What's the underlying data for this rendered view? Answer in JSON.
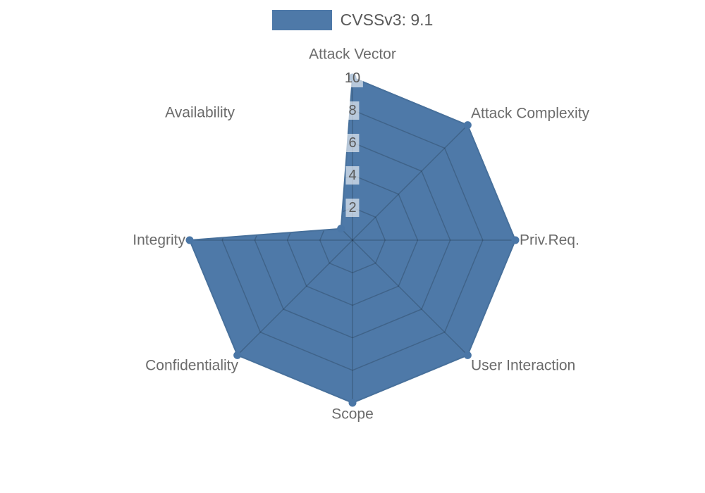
{
  "legend": {
    "swatch_color": "#4e79a8",
    "label": "CVSSv3: 9.1"
  },
  "chart_data": {
    "type": "radar",
    "title": "CVSSv3: 9.1",
    "categories": [
      "Attack Vector",
      "Attack Complexity",
      "Priv.Req.",
      "User Interaction",
      "Scope",
      "Confidentiality",
      "Integrity",
      "Availability"
    ],
    "series": [
      {
        "name": "CVSSv3: 9.1",
        "values": [
          10,
          10,
          10,
          10,
          10,
          10,
          10,
          1
        ]
      }
    ],
    "rmax": 10,
    "ticks": [
      2,
      4,
      6,
      8,
      10
    ],
    "axis_start": "top",
    "direction": "clockwise",
    "legend_position": "top-center",
    "grid": "web-visible-only-inside-fill",
    "colors": {
      "fill": "#4e79a8",
      "edge": "#47709b",
      "dot": "#4a76a6",
      "grid_line": "rgba(0,0,0,0.18)",
      "axis_label": "#6b6b6b",
      "tick_text": "#595959",
      "tick_bg": "rgba(255,255,255,0.6)"
    }
  }
}
